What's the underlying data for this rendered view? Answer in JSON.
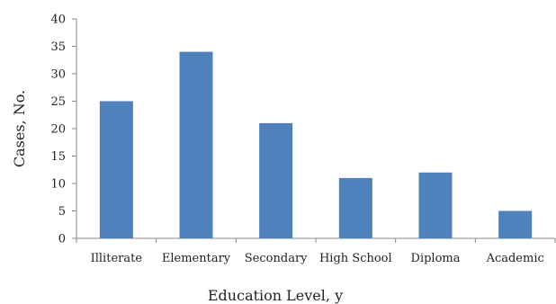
{
  "chart_data": {
    "type": "bar",
    "categories": [
      "Illiterate",
      "Elementary",
      "Secondary",
      "High School",
      "Diploma",
      "Academic"
    ],
    "values": [
      25,
      34,
      21,
      11,
      12,
      5
    ],
    "title": "",
    "xlabel": "Education Level, y",
    "ylabel": "Cases, No.",
    "ylim": [
      0,
      40
    ],
    "yticks": [
      0,
      5,
      10,
      15,
      20,
      25,
      30,
      35,
      40
    ],
    "grid": false,
    "bar_color": "#4f81bd",
    "axis_color": "#888888"
  }
}
